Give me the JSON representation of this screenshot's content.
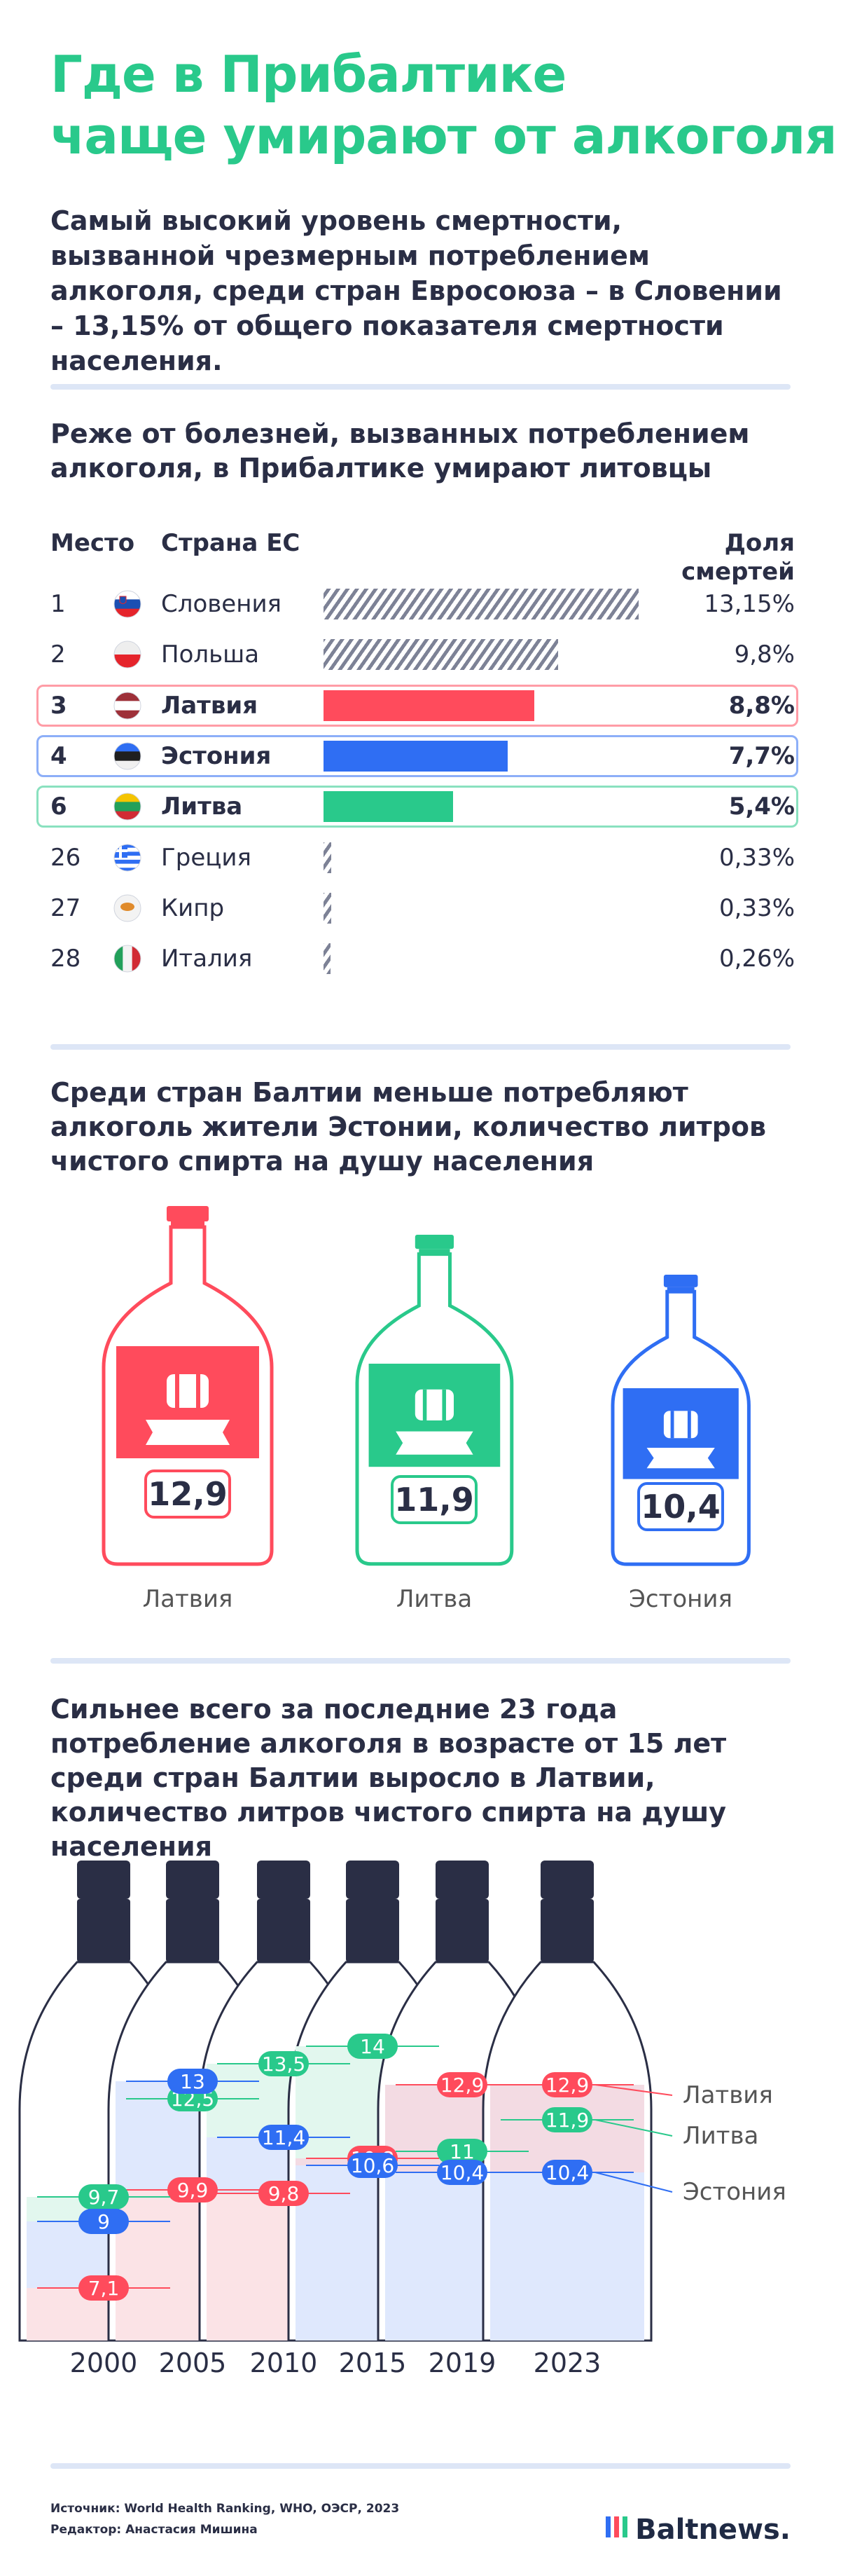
{
  "title_line1": "Где в Прибалтике",
  "title_line2": "чаще умирают от алкоголя",
  "lead": "Самый высокий уровень смертности, вызванной чрезмерным потреблением алкоголя, среди стран Евросоюза – в Словении – 13,15% от общего показателя смертности населения.",
  "section1_title": "Реже от болезней, вызванных потреблением алкоголя, в Прибалтике умирают литовцы",
  "section2_title": "Среди стран Балтии меньше потребляют алкоголь жители Эстонии, количество литров чистого спирта на душу населения",
  "section3_title": "Сильнее всего за последние 23 года потребление алкоголя в возрасте от 15 лет среди стран Балтии выросло в Латвии, количество литров чистого спирта на душу населения",
  "table_headers": {
    "rank": "Место",
    "country": "Страна ЕС",
    "share": "Доля смертей"
  },
  "colors": {
    "green": "#29c98b",
    "red": "#ff4b5c",
    "blue": "#2f6ef3",
    "text": "#2a2e45",
    "divider": "#dde6f6",
    "hatch": "#7d8296"
  },
  "chart_data": [
    {
      "type": "bar",
      "title": "Реже от болезней, вызванных потреблением алкоголя, в Прибалтике умирают литовцы",
      "categories": [
        "Словения",
        "Польша",
        "Латвия",
        "Эстония",
        "Литва",
        "Греция",
        "Кипр",
        "Италия"
      ],
      "ranks": [
        "1",
        "2",
        "3",
        "4",
        "6",
        "26",
        "27",
        "28"
      ],
      "values": [
        13.15,
        9.8,
        8.8,
        7.7,
        5.4,
        0.33,
        0.33,
        0.26
      ],
      "value_labels": [
        "13,15%",
        "9,8%",
        "8,8%",
        "7,7%",
        "5,4%",
        "0,33%",
        "0,33%",
        "0,26%"
      ],
      "highlight": [
        "",
        "",
        "red",
        "blue",
        "green",
        "",
        "",
        ""
      ],
      "flags": [
        "slovenia-flag-icon",
        "poland-flag-icon",
        "latvia-flag-icon",
        "estonia-flag-icon",
        "lithuania-flag-icon",
        "greece-flag-icon",
        "cyprus-flag-icon",
        "italy-flag-icon"
      ]
    },
    {
      "type": "bar",
      "title": "Среди стран Балтии меньше потребляют алкоголь жители Эстонии, количество литров чистого спирта на душу населения",
      "categories": [
        "Латвия",
        "Литва",
        "Эстония"
      ],
      "values": [
        12.9,
        11.9,
        10.4
      ],
      "value_labels": [
        "12,9",
        "11,9",
        "10,4"
      ],
      "colors": [
        "#ff4b5c",
        "#29c98b",
        "#2f6ef3"
      ]
    },
    {
      "type": "line",
      "title": "Сильнее всего за последние 23 года потребление алкоголя в возрасте от 15 лет среди стран Балтии выросло в Латвии, количество литров чистого спирта на душу населения",
      "x": [
        "2000",
        "2005",
        "2010",
        "2015",
        "2019",
        "2023"
      ],
      "series": [
        {
          "name": "Латвия",
          "color": "#ff4b5c",
          "values": [
            7.1,
            9.9,
            9.8,
            10.8,
            12.9,
            12.9
          ],
          "labels": [
            "7,1",
            "9,9",
            "9,8",
            "10,8",
            "12,9",
            "12,9"
          ]
        },
        {
          "name": "Литва",
          "color": "#29c98b",
          "values": [
            9.7,
            12.5,
            13.5,
            14,
            11,
            11.9
          ],
          "labels": [
            "9,7",
            "12,5",
            "13,5",
            "14",
            "11",
            "11,9"
          ]
        },
        {
          "name": "Эстония",
          "color": "#2f6ef3",
          "values": [
            9,
            13,
            11.4,
            10.6,
            10.4,
            10.4
          ],
          "labels": [
            "9",
            "13",
            "11,4",
            "10,6",
            "10,4",
            "10,4"
          ]
        }
      ]
    }
  ],
  "footer": {
    "source": "Источник: World Health Ranking, WHO, ОЭСР, 2023",
    "editor": "Редактор: Анастасия Мишина",
    "logo": "Baltnews."
  }
}
